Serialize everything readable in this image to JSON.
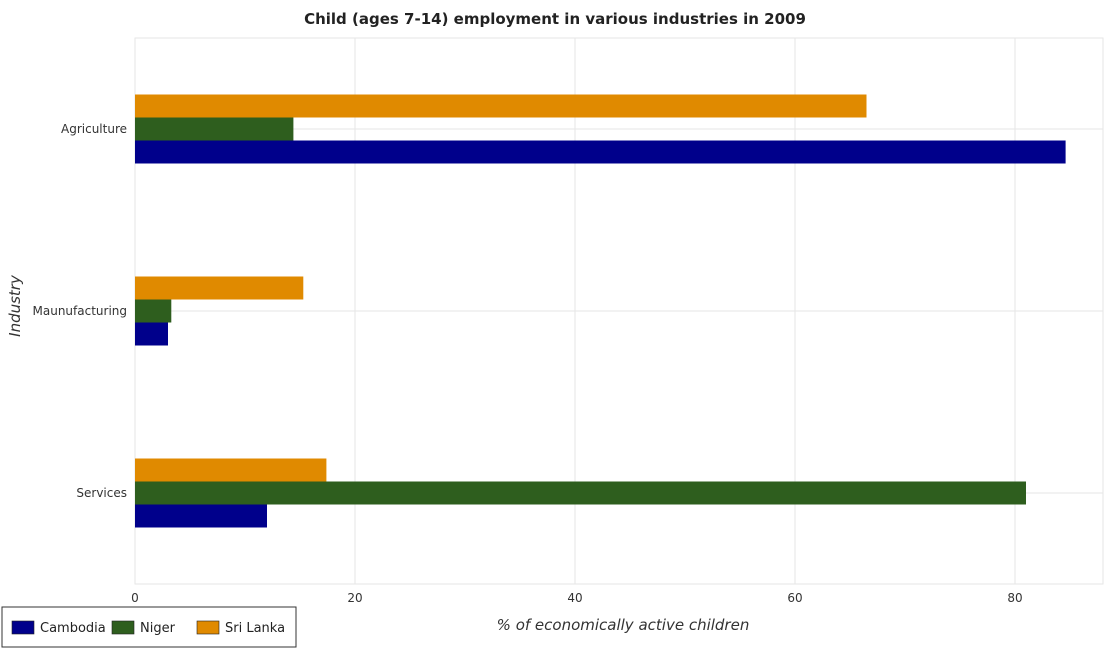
{
  "chart_data": {
    "type": "bar",
    "orientation": "horizontal",
    "title": "Child (ages 7-14) employment in various industries in 2009",
    "xlabel": "% of economically active children",
    "ylabel": "Industry",
    "categories": [
      "Agriculture",
      "Maunufacturing",
      "Services"
    ],
    "series": [
      {
        "name": "Cambodia",
        "color": "#00008b",
        "values": [
          84.6,
          3.0,
          12.0
        ]
      },
      {
        "name": "Niger",
        "color": "#2e5e1e",
        "values": [
          14.4,
          3.3,
          81.0
        ]
      },
      {
        "name": "Sri Lanka",
        "color": "#e08a00",
        "values": [
          66.5,
          15.3,
          17.4
        ]
      }
    ],
    "xlim": [
      0,
      88
    ],
    "xticks": [
      0,
      20,
      40,
      60,
      80
    ],
    "grid": true,
    "legend_position": "bottom-left"
  }
}
